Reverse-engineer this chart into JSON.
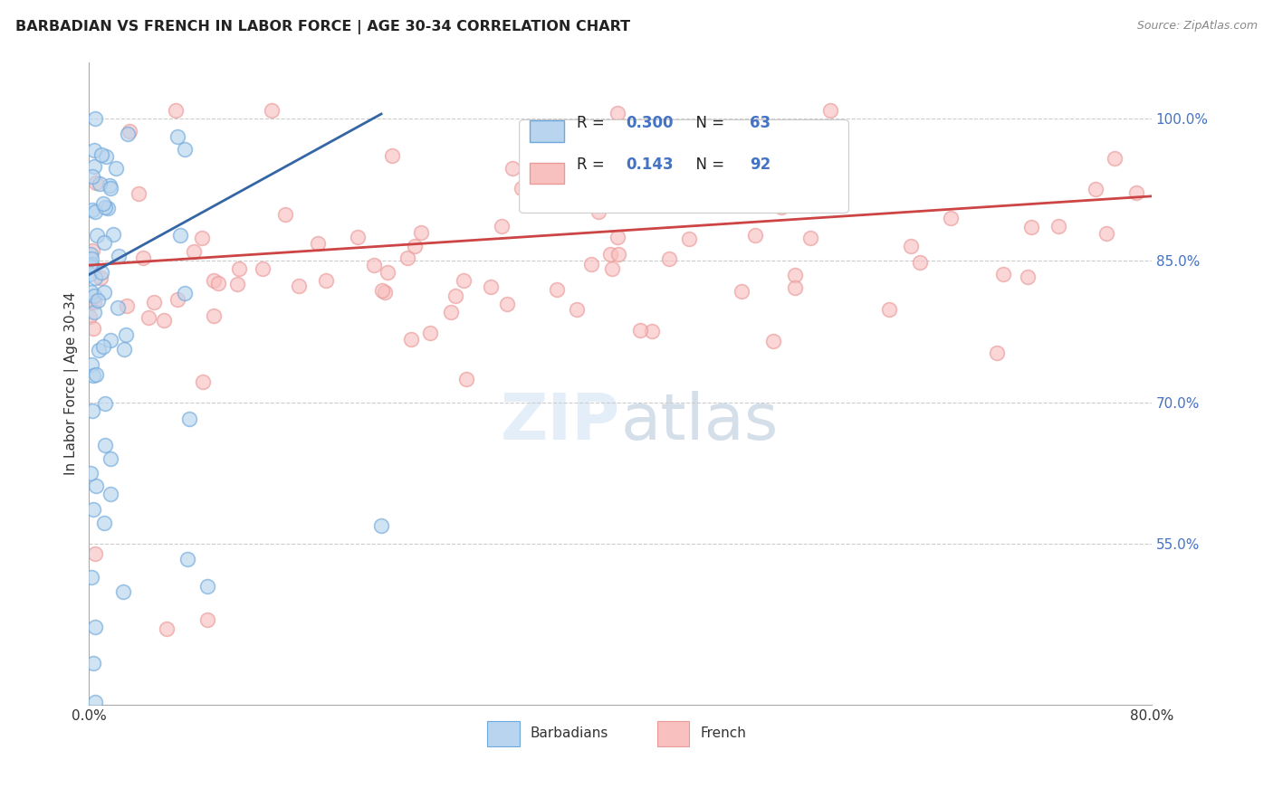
{
  "title": "BARBADIAN VS FRENCH IN LABOR FORCE | AGE 30-34 CORRELATION CHART",
  "source": "Source: ZipAtlas.com",
  "ylabel": "In Labor Force | Age 30-34",
  "xlim": [
    0.0,
    0.8
  ],
  "ylim": [
    0.38,
    1.06
  ],
  "yticks_right": [
    0.55,
    0.7,
    0.85,
    1.0
  ],
  "yticklabels_right": [
    "55.0%",
    "70.0%",
    "85.0%",
    "100.0%"
  ],
  "grid_color": "#cccccc",
  "background_color": "#ffffff",
  "blue_color": "#6fa8dc",
  "pink_color": "#ea9999",
  "blue_line_color": "#3465a4",
  "pink_line_color": "#cc4444",
  "R_blue": 0.3,
  "N_blue": 63,
  "R_pink": 0.143,
  "N_pink": 92,
  "legend_label_blue": "Barbadians",
  "legend_label_pink": "French",
  "blue_line_x": [
    0.0,
    0.22
  ],
  "blue_line_y": [
    0.835,
    1.005
  ],
  "pink_line_x": [
    0.0,
    0.8
  ],
  "pink_line_y": [
    0.845,
    0.918
  ]
}
